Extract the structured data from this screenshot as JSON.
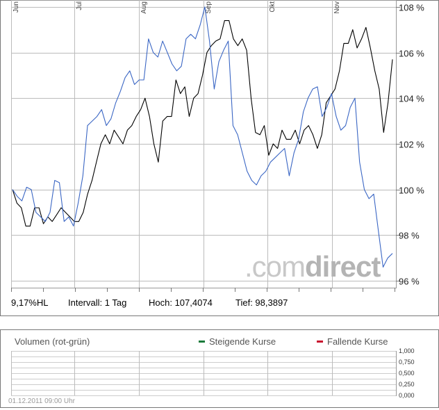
{
  "chart_data": {
    "type": "line",
    "x_labels": [
      "Jun",
      "Jul",
      "Aug",
      "Sep",
      "Okt",
      "Nov"
    ],
    "y_ticks": [
      "108 %",
      "106 %",
      "104 %",
      "102 %",
      "100 %",
      "98 %",
      "96 %"
    ],
    "y_tick_values": [
      108,
      106,
      104,
      102,
      100,
      98,
      96
    ],
    "ylim": [
      95.7,
      108.3
    ],
    "grid": true,
    "series": [
      {
        "color": "#000000",
        "values": [
          100,
          99.4,
          99.2,
          98.4,
          98.4,
          99.2,
          99.2,
          98.5,
          98.8,
          98.6,
          98.9,
          99.2,
          99.0,
          98.8,
          98.6,
          98.6,
          99.0,
          99.8,
          100.4,
          101.2,
          102.0,
          102.4,
          102.0,
          102.6,
          102.3,
          102.0,
          102.6,
          102.8,
          103.2,
          103.5,
          104.0,
          103.2,
          102.0,
          101.2,
          103.0,
          103.2,
          103.2,
          104.8,
          104.2,
          104.5,
          103.2,
          104.0,
          104.2,
          105.0,
          106.0,
          106.3,
          106.5,
          106.6,
          107.4,
          107.4,
          106.6,
          106.3,
          106.6,
          106.1,
          104.0,
          102.5,
          102.4,
          102.8,
          101.5,
          102.0,
          101.8,
          102.6,
          102.2,
          102.2,
          102.6,
          102.0,
          102.6,
          102.8,
          102.4,
          101.8,
          102.4,
          103.8,
          104.1,
          104.4,
          105.2,
          106.4,
          106.4,
          107.0,
          106.2,
          106.6,
          107.1,
          106.2,
          105.2,
          104.4,
          102.5,
          103.8,
          105.7
        ]
      },
      {
        "color": "#3a66c4",
        "values": [
          100,
          99.7,
          99.5,
          100.1,
          100.0,
          99.0,
          98.8,
          98.6,
          99.0,
          100.4,
          100.3,
          98.6,
          98.8,
          98.4,
          99.4,
          100.6,
          102.8,
          103.0,
          103.2,
          103.5,
          102.8,
          103.1,
          103.8,
          104.3,
          104.9,
          105.2,
          104.6,
          104.8,
          104.8,
          106.6,
          106.0,
          105.8,
          106.5,
          106.0,
          105.5,
          105.2,
          105.4,
          106.6,
          106.8,
          106.6,
          107.2,
          108.0,
          106.5,
          104.4,
          105.6,
          106.1,
          106.5,
          102.8,
          102.4,
          101.6,
          100.8,
          100.4,
          100.2,
          100.6,
          100.8,
          101.2,
          101.4,
          101.6,
          101.8,
          100.6,
          101.6,
          102.2,
          103.4,
          104.0,
          104.4,
          104.5,
          103.2,
          103.6,
          104.2,
          103.2,
          102.6,
          102.8,
          103.6,
          104.0,
          101.2,
          100.0,
          99.6,
          99.8,
          98.2,
          96.6,
          97.0,
          97.2
        ]
      }
    ]
  },
  "info": {
    "hl": "9,17%HL",
    "interval": "Intervall: 1 Tag",
    "high": "Hoch: 107,4074",
    "low": "Tief: 98,3897"
  },
  "volume": {
    "title": "Volumen (rot-grün)",
    "legend_up": "Steigende Kurse",
    "legend_down": "Fallende Kurse",
    "color_up": "#1a7a3a",
    "color_down": "#c8102e",
    "y_ticks": [
      "1,000",
      "0,750",
      "0,500",
      "0,250",
      "0,000"
    ],
    "timestamp": "01.12.2011 09:00 Uhr"
  },
  "watermark": {
    "part1": ".com",
    "part2": "direct"
  }
}
